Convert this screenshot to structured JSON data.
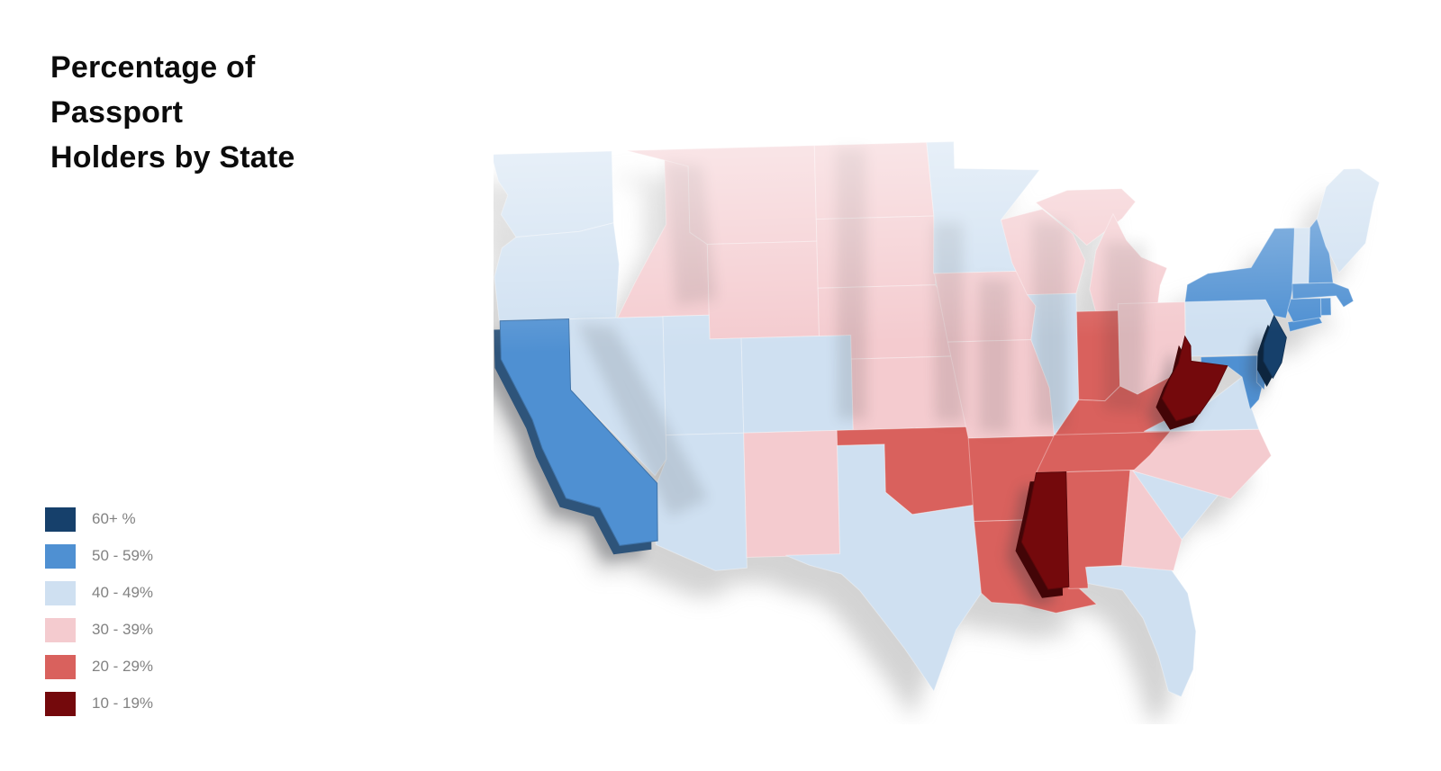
{
  "title": {
    "lines": [
      "Percentage of",
      "Passport",
      "Holders by State"
    ]
  },
  "legend": {
    "text_color": "#828282",
    "items": [
      {
        "category": "60+",
        "label": "60+ %",
        "color": "#16406b"
      },
      {
        "category": "50-59",
        "label": "50 - 59%",
        "color": "#4f90d2"
      },
      {
        "category": "40-49",
        "label": "40 - 49%",
        "color": "#cfe0f1"
      },
      {
        "category": "30-39",
        "label": "30 - 39%",
        "color": "#f4cbcf"
      },
      {
        "category": "20-29",
        "label": "20 - 29%",
        "color": "#d9615d"
      },
      {
        "category": "10-19",
        "label": "10 - 19%",
        "color": "#74090c"
      }
    ]
  },
  "map": {
    "shadow_color": "#b0b0b0",
    "states": [
      {
        "abbr": "WA",
        "name": "Washington",
        "category": "40-49"
      },
      {
        "abbr": "OR",
        "name": "Oregon",
        "category": "40-49"
      },
      {
        "abbr": "CA",
        "name": "California",
        "category": "50-59",
        "raised": true
      },
      {
        "abbr": "NV",
        "name": "Nevada",
        "category": "40-49"
      },
      {
        "abbr": "ID",
        "name": "Idaho",
        "category": "30-39"
      },
      {
        "abbr": "MT",
        "name": "Montana",
        "category": "30-39"
      },
      {
        "abbr": "WY",
        "name": "Wyoming",
        "category": "30-39"
      },
      {
        "abbr": "UT",
        "name": "Utah",
        "category": "40-49"
      },
      {
        "abbr": "CO",
        "name": "Colorado",
        "category": "40-49"
      },
      {
        "abbr": "AZ",
        "name": "Arizona",
        "category": "40-49"
      },
      {
        "abbr": "NM",
        "name": "New Mexico",
        "category": "30-39"
      },
      {
        "abbr": "ND",
        "name": "North Dakota",
        "category": "30-39"
      },
      {
        "abbr": "SD",
        "name": "South Dakota",
        "category": "30-39"
      },
      {
        "abbr": "NE",
        "name": "Nebraska",
        "category": "30-39"
      },
      {
        "abbr": "KS",
        "name": "Kansas",
        "category": "30-39"
      },
      {
        "abbr": "OK",
        "name": "Oklahoma",
        "category": "20-29"
      },
      {
        "abbr": "TX",
        "name": "Texas",
        "category": "40-49"
      },
      {
        "abbr": "MN",
        "name": "Minnesota",
        "category": "40-49"
      },
      {
        "abbr": "IA",
        "name": "Iowa",
        "category": "30-39"
      },
      {
        "abbr": "MO",
        "name": "Missouri",
        "category": "30-39"
      },
      {
        "abbr": "AR",
        "name": "Arkansas",
        "category": "20-29"
      },
      {
        "abbr": "LA",
        "name": "Louisiana",
        "category": "20-29"
      },
      {
        "abbr": "WI",
        "name": "Wisconsin",
        "category": "30-39"
      },
      {
        "abbr": "IL",
        "name": "Illinois",
        "category": "40-49"
      },
      {
        "abbr": "MI",
        "name": "Michigan",
        "category": "30-39"
      },
      {
        "abbr": "IN",
        "name": "Indiana",
        "category": "20-29"
      },
      {
        "abbr": "OH",
        "name": "Ohio",
        "category": "30-39"
      },
      {
        "abbr": "KY",
        "name": "Kentucky",
        "category": "20-29"
      },
      {
        "abbr": "TN",
        "name": "Tennessee",
        "category": "20-29"
      },
      {
        "abbr": "MS",
        "name": "Mississippi",
        "category": "10-19",
        "raised": true
      },
      {
        "abbr": "AL",
        "name": "Alabama",
        "category": "20-29"
      },
      {
        "abbr": "GA",
        "name": "Georgia",
        "category": "30-39"
      },
      {
        "abbr": "FL",
        "name": "Florida",
        "category": "40-49"
      },
      {
        "abbr": "SC",
        "name": "South Carolina",
        "category": "40-49"
      },
      {
        "abbr": "NC",
        "name": "North Carolina",
        "category": "30-39"
      },
      {
        "abbr": "VA",
        "name": "Virginia",
        "category": "40-49"
      },
      {
        "abbr": "WV",
        "name": "West Virginia",
        "category": "10-19",
        "raised": true
      },
      {
        "abbr": "MD",
        "name": "Maryland",
        "category": "50-59"
      },
      {
        "abbr": "DE",
        "name": "Delaware",
        "category": "50-59"
      },
      {
        "abbr": "PA",
        "name": "Pennsylvania",
        "category": "40-49"
      },
      {
        "abbr": "NJ",
        "name": "New Jersey",
        "category": "60+",
        "raised": true
      },
      {
        "abbr": "NY",
        "name": "New York",
        "category": "50-59"
      },
      {
        "abbr": "CT",
        "name": "Connecticut",
        "category": "50-59"
      },
      {
        "abbr": "RI",
        "name": "Rhode Island",
        "category": "50-59"
      },
      {
        "abbr": "MA",
        "name": "Massachusetts",
        "category": "50-59"
      },
      {
        "abbr": "VT",
        "name": "Vermont",
        "category": "40-49"
      },
      {
        "abbr": "NH",
        "name": "New Hampshire",
        "category": "50-59"
      },
      {
        "abbr": "ME",
        "name": "Maine",
        "category": "40-49"
      }
    ]
  }
}
